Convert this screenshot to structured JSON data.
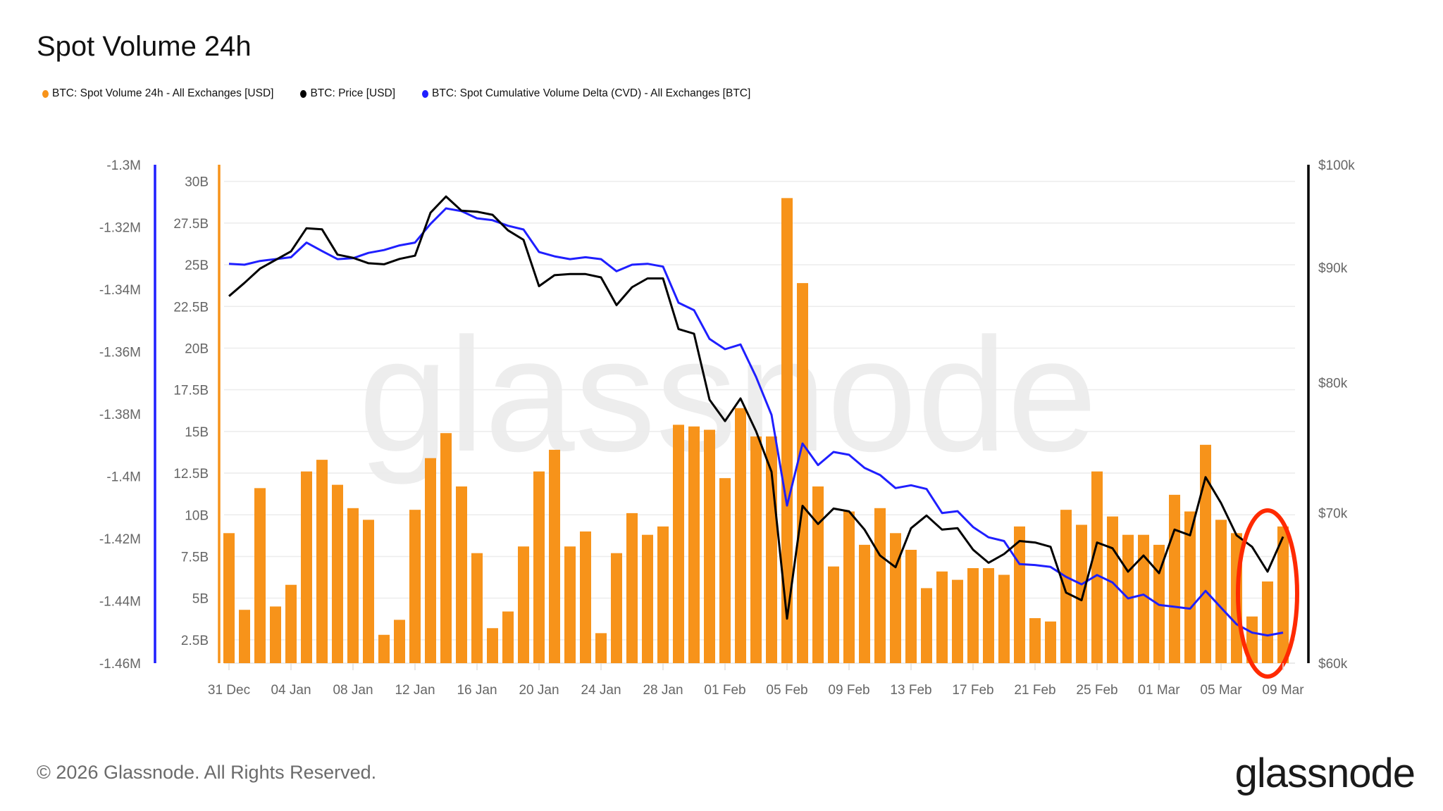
{
  "title": "Spot Volume 24h",
  "legend": [
    {
      "label": "BTC: Spot Volume 24h - All Exchanges [USD]",
      "color": "#F7931A"
    },
    {
      "label": "BTC: Price [USD]",
      "color": "#000000"
    },
    {
      "label": "BTC: Spot Cumulative Volume Delta (CVD) - All Exchanges [BTC]",
      "color": "#1F1FFF"
    }
  ],
  "footer": {
    "copyright": "© 2026 Glassnode. All Rights Reserved.",
    "logo": "glassnode"
  },
  "watermark": "glassnode",
  "chart_data": {
    "type": "bar",
    "title": "Spot Volume 24h",
    "grid": true,
    "legend_placement": "top-left",
    "x": [
      "2025-12-31",
      "2026-01-01",
      "2026-01-02",
      "2026-01-03",
      "2026-01-04",
      "2026-01-05",
      "2026-01-06",
      "2026-01-07",
      "2026-01-08",
      "2026-01-09",
      "2026-01-10",
      "2026-01-11",
      "2026-01-12",
      "2026-01-13",
      "2026-01-14",
      "2026-01-15",
      "2026-01-16",
      "2026-01-17",
      "2026-01-18",
      "2026-01-19",
      "2026-01-20",
      "2026-01-21",
      "2026-01-22",
      "2026-01-23",
      "2026-01-24",
      "2026-01-25",
      "2026-01-26",
      "2026-01-27",
      "2026-01-28",
      "2026-01-29",
      "2026-01-30",
      "2026-01-31",
      "2026-02-01",
      "2026-02-02",
      "2026-02-03",
      "2026-02-04",
      "2026-02-05",
      "2026-02-06",
      "2026-02-07",
      "2026-02-08",
      "2026-02-09",
      "2026-02-10",
      "2026-02-11",
      "2026-02-12",
      "2026-02-13",
      "2026-02-14",
      "2026-02-15",
      "2026-02-16",
      "2026-02-17",
      "2026-02-18",
      "2026-02-19",
      "2026-02-20",
      "2026-02-21",
      "2026-02-22",
      "2026-02-23",
      "2026-02-24",
      "2026-02-25",
      "2026-02-26",
      "2026-02-27",
      "2026-02-28",
      "2026-03-01",
      "2026-03-02",
      "2026-03-03",
      "2026-03-04",
      "2026-03-05",
      "2026-03-06",
      "2026-03-07",
      "2026-03-08",
      "2026-03-09"
    ],
    "x_tick_labels": [
      "31 Dec",
      "04 Jan",
      "08 Jan",
      "12 Jan",
      "16 Jan",
      "20 Jan",
      "24 Jan",
      "28 Jan",
      "01 Feb",
      "05 Feb",
      "09 Feb",
      "13 Feb",
      "17 Feb",
      "21 Feb",
      "25 Feb",
      "01 Mar",
      "05 Mar",
      "09 Mar"
    ],
    "series": [
      {
        "name": "BTC: Spot Volume 24h - All Exchanges [USD]",
        "type": "bar",
        "color": "#F7931A",
        "axis": "left-inner",
        "unit": "B USD",
        "values": [
          8.9,
          4.3,
          11.6,
          4.5,
          5.8,
          12.6,
          13.3,
          11.8,
          10.4,
          9.7,
          2.8,
          3.7,
          10.3,
          13.4,
          14.9,
          11.7,
          7.7,
          3.2,
          4.2,
          8.1,
          12.6,
          13.9,
          8.1,
          9.0,
          2.9,
          7.7,
          10.1,
          8.8,
          9.3,
          15.4,
          15.3,
          15.1,
          12.2,
          16.4,
          14.7,
          14.7,
          29.0,
          23.9,
          11.7,
          6.9,
          10.2,
          8.2,
          10.4,
          8.9,
          7.9,
          5.6,
          6.6,
          6.1,
          6.8,
          6.8,
          6.4,
          9.3,
          3.8,
          3.6,
          10.3,
          9.4,
          12.6,
          9.9,
          8.8,
          8.8,
          8.2,
          11.2,
          10.2,
          14.2,
          9.7,
          8.9,
          3.9,
          6.0,
          9.3
        ]
      },
      {
        "name": "BTC: Price [USD]",
        "type": "line",
        "color": "#000000",
        "axis": "right",
        "unit": "k USD",
        "values": [
          87.4,
          88.6,
          89.9,
          90.7,
          91.5,
          93.7,
          93.6,
          91.2,
          90.9,
          90.4,
          90.3,
          90.8,
          91.1,
          95.2,
          96.8,
          95.4,
          95.3,
          95.0,
          93.5,
          92.6,
          88.3,
          89.3,
          89.4,
          89.4,
          89.1,
          86.6,
          88.2,
          89.0,
          89.0,
          84.5,
          84.1,
          78.6,
          76.9,
          78.7,
          76.1,
          73.0,
          62.8,
          70.5,
          69.2,
          70.3,
          70.1,
          68.8,
          67.0,
          66.2,
          68.9,
          69.8,
          68.8,
          68.9,
          67.4,
          66.5,
          67.1,
          68.0,
          67.9,
          67.6,
          64.5,
          64.0,
          67.9,
          67.5,
          65.9,
          67.0,
          65.8,
          68.8,
          68.4,
          72.6,
          70.7,
          68.4,
          67.6,
          65.9,
          68.3
        ]
      },
      {
        "name": "BTC: Spot Cumulative Volume Delta (CVD) - All Exchanges [BTC]",
        "type": "line",
        "color": "#1F1FFF",
        "axis": "left-outer",
        "unit": "M BTC",
        "values": [
          -1.3318,
          -1.3321,
          -1.3309,
          -1.3303,
          -1.3297,
          -1.325,
          -1.3277,
          -1.3303,
          -1.33,
          -1.3283,
          -1.3274,
          -1.3259,
          -1.325,
          -1.319,
          -1.314,
          -1.3149,
          -1.3172,
          -1.3178,
          -1.3196,
          -1.3208,
          -1.328,
          -1.3294,
          -1.3303,
          -1.3297,
          -1.3303,
          -1.3342,
          -1.3321,
          -1.3318,
          -1.3327,
          -1.3443,
          -1.3467,
          -1.3559,
          -1.3592,
          -1.3577,
          -1.3681,
          -1.3803,
          -1.4094,
          -1.3895,
          -1.3964,
          -1.3922,
          -1.3931,
          -1.3973,
          -1.3996,
          -1.4038,
          -1.4029,
          -1.4041,
          -1.4118,
          -1.4112,
          -1.4163,
          -1.4196,
          -1.4208,
          -1.4282,
          -1.4285,
          -1.4291,
          -1.4323,
          -1.4347,
          -1.4317,
          -1.4341,
          -1.4392,
          -1.438,
          -1.4413,
          -1.4419,
          -1.4425,
          -1.4368,
          -1.4422,
          -1.4475,
          -1.4502,
          -1.4511,
          -1.4502
        ]
      }
    ],
    "axes": {
      "volume": {
        "ticks": [
          2.5,
          5,
          7.5,
          10,
          12.5,
          15,
          17.5,
          20,
          22.5,
          25,
          27.5,
          30
        ],
        "tick_labels": [
          "2.5B",
          "5B",
          "7.5B",
          "10B",
          "12.5B",
          "15B",
          "17.5B",
          "20B",
          "22.5B",
          "25B",
          "27.5B",
          "30B"
        ],
        "range": [
          1.1,
          31
        ],
        "color": "#F7931A"
      },
      "cvd": {
        "ticks": [
          -1.3,
          -1.32,
          -1.34,
          -1.36,
          -1.38,
          -1.4,
          -1.42,
          -1.44,
          -1.46
        ],
        "tick_labels": [
          "-1.3M",
          "-1.32M",
          "-1.34M",
          "-1.36M",
          "-1.38M",
          "-1.4M",
          "-1.42M",
          "-1.44M",
          "-1.46M"
        ],
        "range": [
          -1.46,
          -1.3
        ],
        "color": "#1F1FFF"
      },
      "price": {
        "ticks": [
          100,
          90,
          80,
          70,
          60
        ],
        "tick_labels": [
          "$100k",
          "$90k",
          "$80k",
          "$70k",
          "$60k"
        ],
        "range": [
          60,
          100
        ],
        "scale": "log",
        "color": "#000000"
      }
    },
    "annotations": [
      {
        "type": "ellipse",
        "color": "#FF2A00",
        "around": [
          "2026-03-07",
          "2026-03-09"
        ]
      }
    ]
  }
}
